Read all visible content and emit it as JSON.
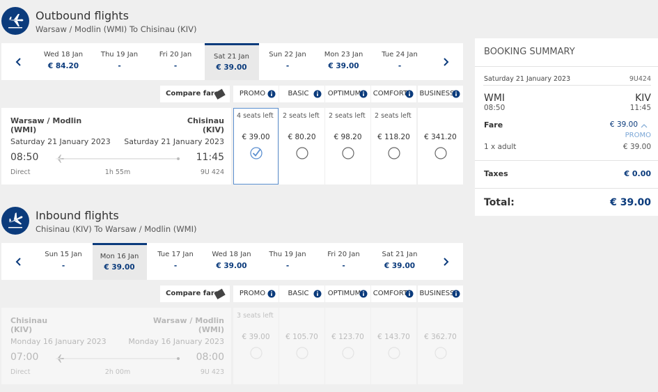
{
  "outbound": {
    "title": "Outbound flights",
    "route": "Warsaw / Modlin (WMI) To Chisinau (KIV)",
    "dates": [
      {
        "day": "Wed 18 Jan",
        "price": "€ 84.20"
      },
      {
        "day": "Thu 19 Jan",
        "price": "-"
      },
      {
        "day": "Fri 20 Jan",
        "price": "-"
      },
      {
        "day": "Sat 21 Jan",
        "price": "€ 39.00"
      },
      {
        "day": "Sun 22 Jan",
        "price": "-"
      },
      {
        "day": "Mon 23 Jan",
        "price": "€ 39.00"
      },
      {
        "day": "Tue 24 Jan",
        "price": "-"
      }
    ],
    "compare": "Compare fare",
    "classes": [
      "PROMO",
      "BASIC",
      "OPTIMUM",
      "COMFORT",
      "BUSINESS"
    ],
    "flight": {
      "from_city": "Warsaw / Modlin",
      "from_code": "(WMI)",
      "to_city": "Chisinau",
      "to_code": "(KIV)",
      "dep_date": "Saturday 21 January 2023",
      "arr_date": "Saturday 21 January 2023",
      "dep_time": "08:50",
      "arr_time": "11:45",
      "stops": "Direct",
      "duration": "1h 55m",
      "flight_no": "9U 424"
    },
    "fares": [
      {
        "seats": "4 seats left",
        "price": "€ 39.00"
      },
      {
        "seats": "2 seats left",
        "price": "€ 80.20"
      },
      {
        "seats": "2 seats left",
        "price": "€ 98.20"
      },
      {
        "seats": "2 seats left",
        "price": "€ 118.20"
      },
      {
        "price": "€ 341.20"
      }
    ]
  },
  "inbound": {
    "title": "Inbound flights",
    "route": "Chisinau (KIV) To Warsaw / Modlin (WMI)",
    "dates": [
      {
        "day": "Sun 15 Jan",
        "price": "-"
      },
      {
        "day": "Mon 16 Jan",
        "price": "€ 39.00"
      },
      {
        "day": "Tue 17 Jan",
        "price": "-"
      },
      {
        "day": "Wed 18 Jan",
        "price": "€ 39.00"
      },
      {
        "day": "Thu 19 Jan",
        "price": "-"
      },
      {
        "day": "Fri 20 Jan",
        "price": "-"
      },
      {
        "day": "Sat 21 Jan",
        "price": "€ 39.00"
      }
    ],
    "compare": "Compare fare",
    "classes": [
      "PROMO",
      "BASIC",
      "OPTIMUM",
      "COMFORT",
      "BUSINESS"
    ],
    "flight": {
      "from_city": "Chisinau",
      "from_code": "(KIV)",
      "to_city": "Warsaw / Modlin",
      "to_code": "(WMI)",
      "dep_date": "Monday 16 January 2023",
      "arr_date": "Monday 16 January 2023",
      "dep_time": "07:00",
      "arr_time": "08:00",
      "stops": "Direct",
      "duration": "2h 00m",
      "flight_no": "9U 423"
    },
    "fares": [
      {
        "seats": "3 seats left",
        "price": "€ 39.00"
      },
      {
        "price": "€ 105.70"
      },
      {
        "price": "€ 123.70"
      },
      {
        "price": "€ 143.70"
      },
      {
        "price": "€ 362.70"
      }
    ]
  },
  "summary": {
    "title": "BOOKING SUMMARY",
    "date": "Saturday 21 January 2023",
    "flight_no": "9U424",
    "from": "WMI",
    "to": "KIV",
    "dep_time": "08:50",
    "arr_time": "11:45",
    "fare_label": "Fare",
    "fare_price": "€ 39.00",
    "fare_class": "PROMO",
    "pax": "1 x adult",
    "pax_price": "€ 39.00",
    "taxes_label": "Taxes",
    "taxes": "€ 0.00",
    "total_label": "Total:",
    "total": "€ 39.00"
  }
}
